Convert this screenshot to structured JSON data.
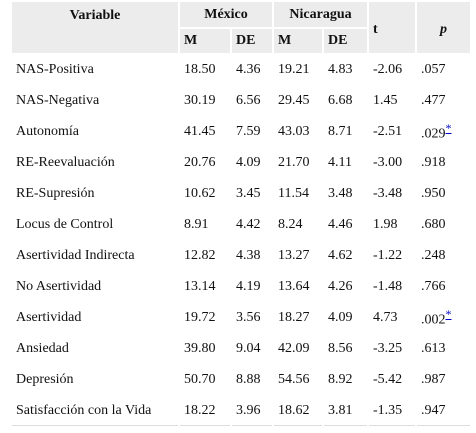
{
  "table": {
    "header": {
      "variable": "Variable",
      "group1": "México",
      "group2": "Nicaragua",
      "t": "t",
      "p": "p",
      "sub": [
        "M",
        "DE",
        "M",
        "DE"
      ]
    },
    "rows": [
      {
        "cells": [
          "NAS-Positiva",
          "18.50",
          "4.36",
          "19.21",
          "4.83",
          "-2.06",
          ".057"
        ]
      },
      {
        "cells": [
          "NAS-Negativa",
          "30.19",
          "6.56",
          "29.45",
          "6.68",
          "1.45",
          ".477"
        ]
      },
      {
        "cells": [
          "Autonomía",
          "41.45",
          "7.59",
          "43.03",
          "8.71",
          "-2.51",
          ".029"
        ],
        "note": "*"
      },
      {
        "cells": [
          "RE-Reevaluación",
          "20.76",
          "4.09",
          "21.70",
          "4.11",
          "-3.00",
          ".918"
        ]
      },
      {
        "cells": [
          "RE-Supresión",
          "10.62",
          "3.45",
          "11.54",
          "3.48",
          "-3.48",
          ".950"
        ]
      },
      {
        "cells": [
          "Locus de Control",
          "8.91",
          "4.42",
          "8.24",
          "4.46",
          "1.98",
          ".680"
        ]
      },
      {
        "cells": [
          "Asertividad Indirecta",
          "12.82",
          "4.38",
          "13.27",
          "4.62",
          "-1.22",
          ".248"
        ]
      },
      {
        "cells": [
          "No Asertividad",
          "13.14",
          "4.19",
          "13.64",
          "4.26",
          "-1.48",
          ".766"
        ]
      },
      {
        "cells": [
          "Asertividad",
          "19.72",
          "3.56",
          "18.27",
          "4.09",
          "4.73",
          ".002"
        ],
        "note": "*"
      },
      {
        "cells": [
          "Ansiedad",
          "39.80",
          "9.04",
          "42.09",
          "8.56",
          "-3.25",
          ".613"
        ]
      },
      {
        "cells": [
          "Depresión",
          "50.70",
          "8.88",
          "54.56",
          "8.92",
          "-5.42",
          ".987"
        ]
      },
      {
        "cells": [
          "Satisfacción con la Vida",
          "18.22",
          "3.96",
          "18.62",
          "3.81",
          "-1.35",
          ".947"
        ]
      }
    ]
  }
}
